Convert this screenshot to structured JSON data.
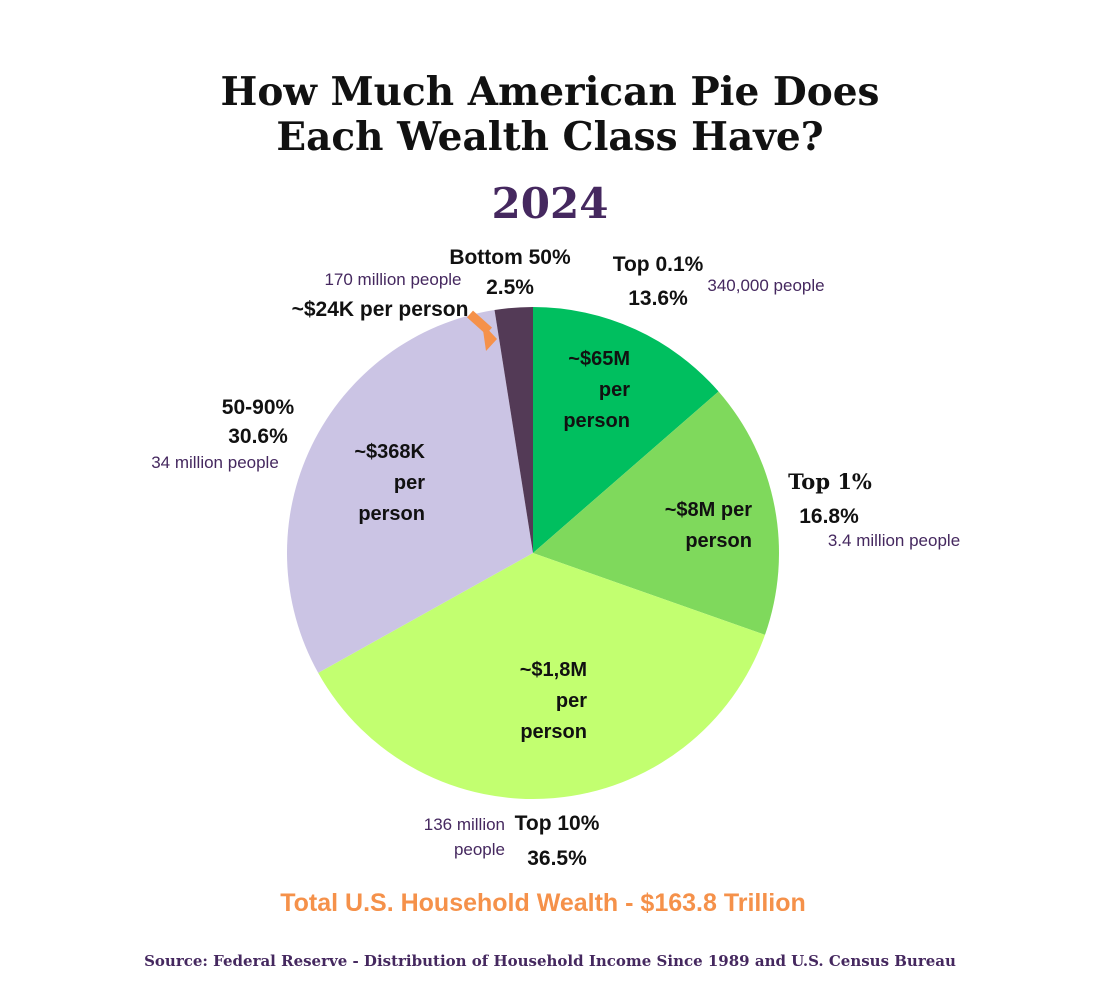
{
  "title_lines": [
    "How Much American Pie Does",
    "Each Wealth Class Have?"
  ],
  "year": "2024",
  "total": "Total U.S. Household Wealth - $163.8 Trillion",
  "source": "Source: Federal Reserve - Distribution of Household Income Since 1989 and U.S. Census Bureau",
  "colors": {
    "title": "#111111",
    "accent_purple": "#45285f",
    "accent_orange": "#f5914a",
    "top_0_1": "#00bf5f",
    "top_1": "#7fd95c",
    "top_10": "#c2ff70",
    "p50_90": "#cbc4e4",
    "bottom_50": "#533a56"
  },
  "chart_data": {
    "type": "pie",
    "title": "How Much American Pie Does Each Wealth Class Have?",
    "subtitle": "2024",
    "start": "12 o'clock, clockwise",
    "slices": [
      {
        "name": "Top 0.1%",
        "value": 13.6,
        "pct_label": "13.6%",
        "people": "340,000 people",
        "inside_lines": [
          "~$65M",
          "per",
          "person"
        ],
        "color": "#00bf5f"
      },
      {
        "name": "Top 1%",
        "value": 16.8,
        "pct_label": "16.8%",
        "people": "3.4 million people",
        "inside_lines": [
          "~$8M per",
          "person"
        ],
        "color": "#7fd95c"
      },
      {
        "name": "Top 10%",
        "value": 36.5,
        "pct_label": "36.5%",
        "people_lines": [
          "136 million",
          "people"
        ],
        "inside_lines": [
          "~$1,8M",
          "per",
          "person"
        ],
        "color": "#c2ff70"
      },
      {
        "name": "50-90%",
        "value": 30.6,
        "pct_label": "30.6%",
        "people": "34 million people",
        "inside_lines": [
          "~$368K",
          "per",
          "person"
        ],
        "color": "#cbc4e4"
      },
      {
        "name": "Bottom 50%",
        "value": 2.5,
        "pct_label": "2.5%",
        "people": "170 million people",
        "per_person": "~$24K per person",
        "color": "#533a56"
      }
    ]
  }
}
